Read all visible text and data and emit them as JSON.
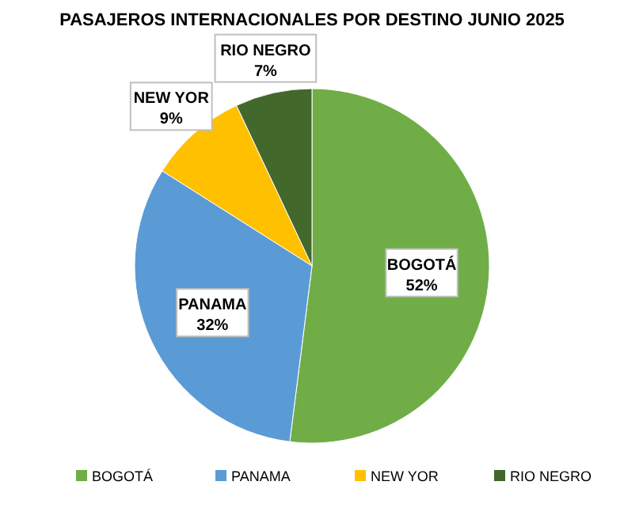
{
  "chart_data": {
    "type": "pie",
    "title": "PASAJEROS INTERNACIONALES POR DESTINO JUNIO 2025",
    "categories": [
      "BOGOTÁ",
      "PANAMA",
      "NEW YOR",
      "RIO NEGRO"
    ],
    "values": [
      52,
      32,
      9,
      7
    ],
    "colors": [
      "#70ad47",
      "#5b9bd5",
      "#ffc000",
      "#43682b"
    ],
    "value_labels": [
      "52%",
      "32%",
      "9%",
      "7%"
    ],
    "legend": "bottom"
  }
}
